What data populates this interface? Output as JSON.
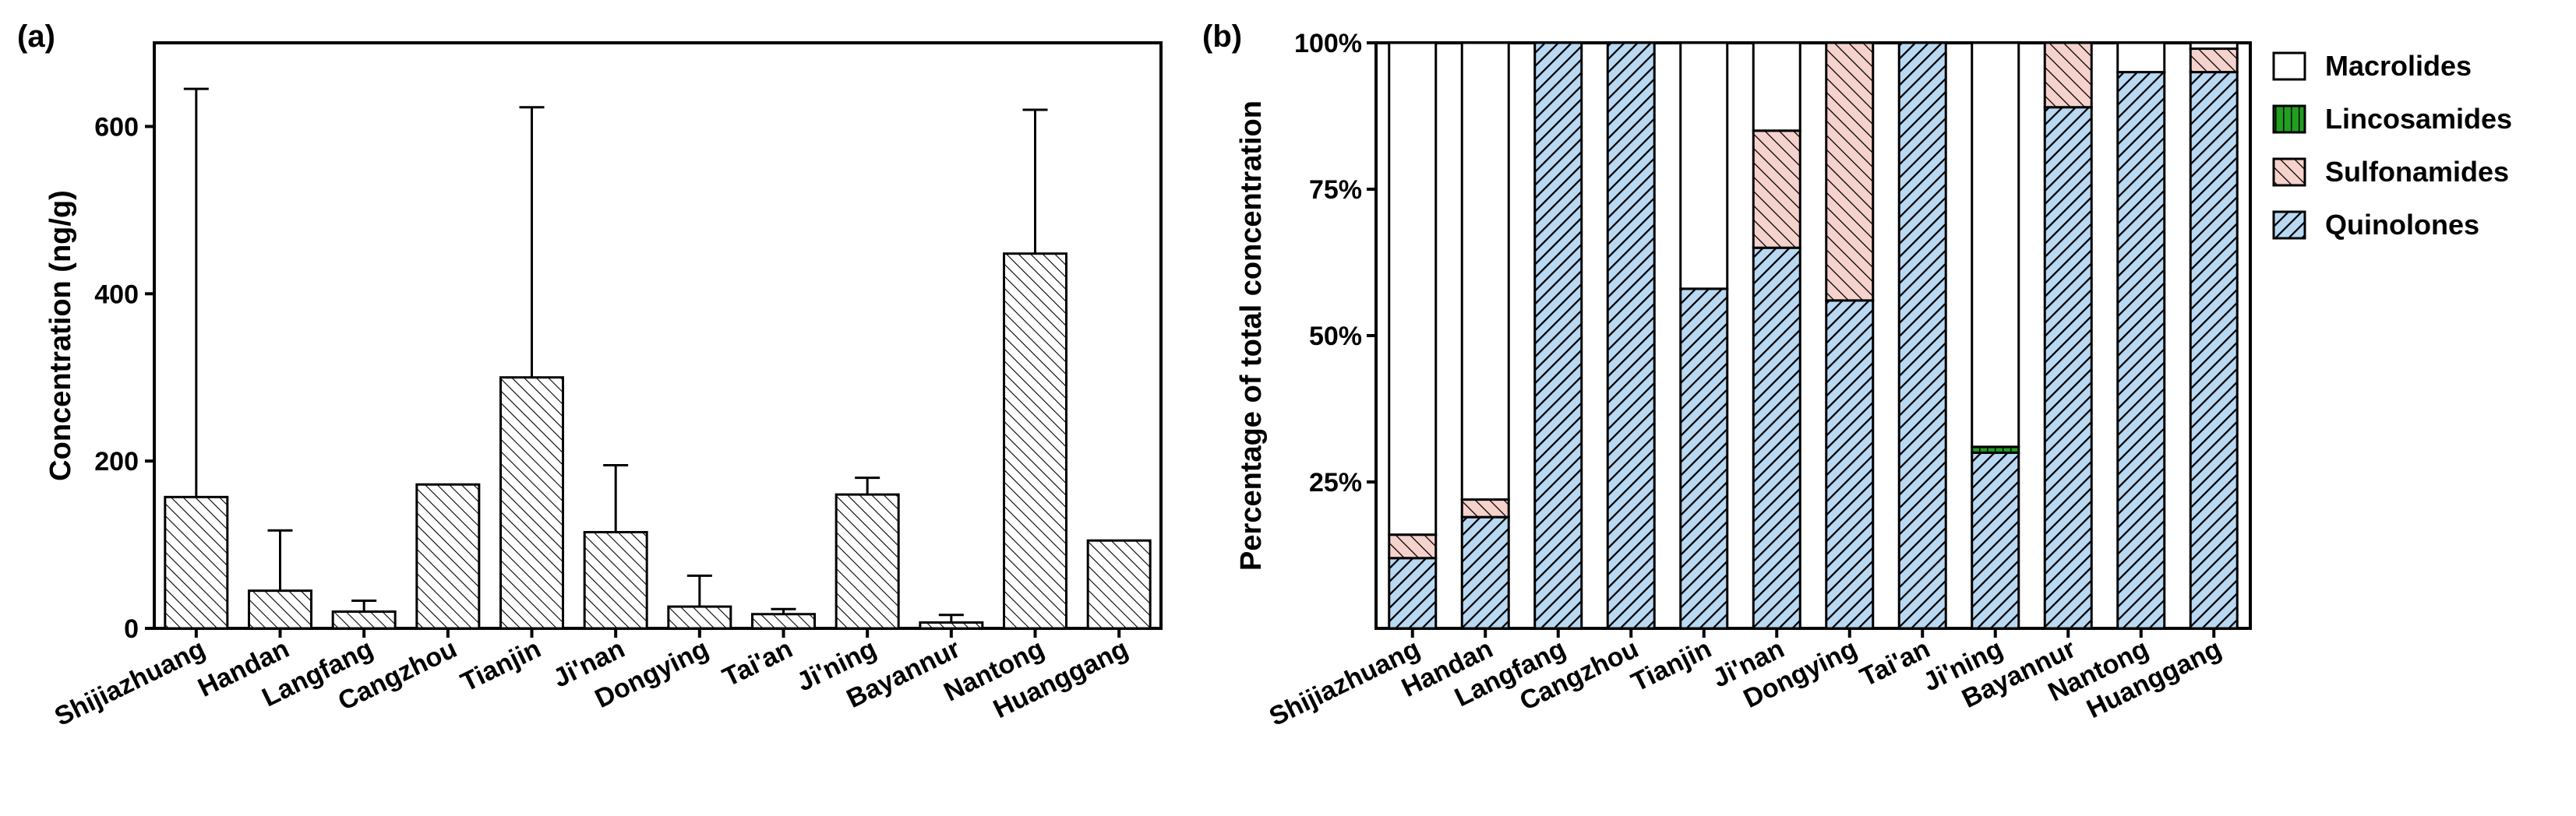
{
  "chart_data": [
    {
      "panel": "(a)",
      "type": "bar",
      "title": "",
      "xlabel": "",
      "ylabel": "Concentration (ng/g)",
      "ylim": [
        0,
        700
      ],
      "yticks": [
        0,
        200,
        400,
        600
      ],
      "categories": [
        "Shijiazhuang",
        "Handan",
        "Langfang",
        "Cangzhou",
        "Tianjin",
        "Ji'nan",
        "Dongying",
        "Tai'an",
        "Ji'ning",
        "Bayannur",
        "Nantong",
        "Huanggang"
      ],
      "values": [
        157,
        45,
        20,
        172,
        300,
        115,
        26,
        17,
        160,
        7,
        448,
        105
      ],
      "error_upper": [
        645,
        117,
        33,
        null,
        623,
        195,
        63,
        23,
        180,
        16,
        620,
        null
      ]
    },
    {
      "panel": "(b)",
      "type": "bar",
      "stacked": true,
      "ylabel": "Percentage of total concentration",
      "ylim": [
        0,
        100
      ],
      "yticks": [
        "25%",
        "50%",
        "75%",
        "100%"
      ],
      "categories": [
        "Shijiazhuang",
        "Handan",
        "Langfang",
        "Cangzhou",
        "Tianjin",
        "Ji'nan",
        "Dongying",
        "Tai'an",
        "Ji'ning",
        "Bayannur",
        "Nantong",
        "Huanggang"
      ],
      "legend": [
        "Macrolides",
        "Lincosamides",
        "Sulfonamides",
        "Quinolones"
      ],
      "series": [
        {
          "name": "Quinolones",
          "values": [
            12,
            19,
            100,
            100,
            58,
            65,
            56,
            100,
            30,
            89,
            95,
            95
          ]
        },
        {
          "name": "Sulfonamides",
          "values": [
            4,
            3,
            0,
            0,
            0,
            20,
            44,
            0,
            0,
            11,
            0,
            4
          ]
        },
        {
          "name": "Lincosamides",
          "values": [
            0,
            0,
            0,
            0,
            0,
            0,
            0,
            0,
            1,
            0,
            0,
            0
          ]
        },
        {
          "name": "Macrolides",
          "values": [
            84,
            78,
            0,
            0,
            42,
            15,
            0,
            0,
            69,
            0,
            5,
            1
          ]
        }
      ],
      "colors": {
        "Quinolones": "#b9d8f2",
        "Sulfonamides": "#f6d2cc",
        "Lincosamides": "#1f9e1f",
        "Macrolides": "#ffffff"
      }
    }
  ]
}
